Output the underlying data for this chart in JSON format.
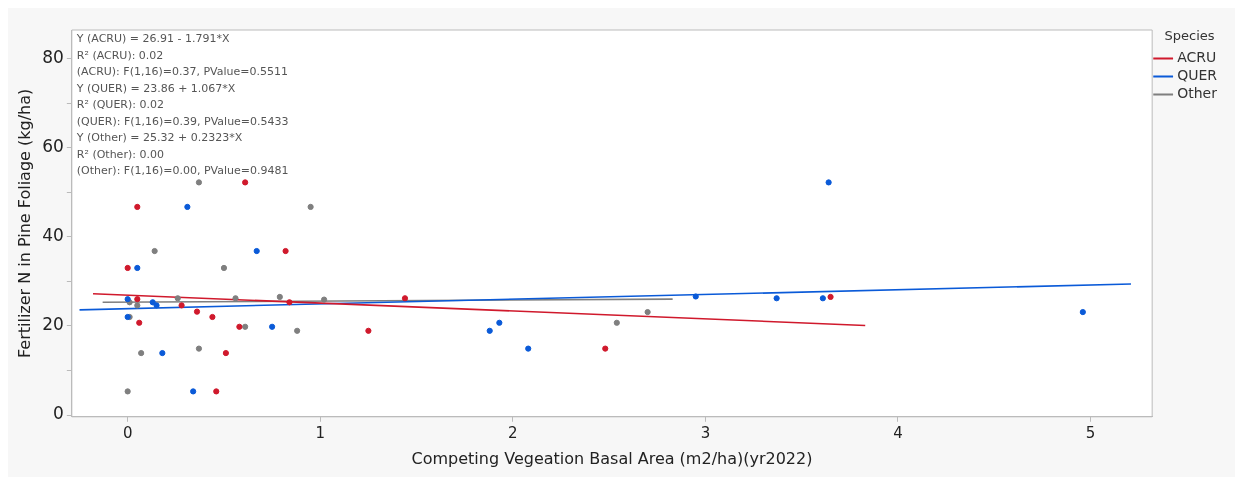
{
  "chart_data": {
    "type": "scatter",
    "xlabel": "Competing Vegeation Basal Area (m2/ha)(yr2022)",
    "ylabel": "Fertilizer N in Pine Foliage (kg/ha)",
    "legend_title": "Species",
    "legend": "right",
    "grid": false,
    "marker": "circle",
    "xlim": [
      -0.29,
      5.32
    ],
    "xticks": [
      0,
      1,
      2,
      3,
      4,
      5
    ],
    "ylim": [
      -0.4,
      86.4
    ],
    "yticks": [
      0,
      {
        "value": 10,
        "label": null
      },
      20,
      {
        "value": 30,
        "label": null
      },
      40,
      {
        "value": 50,
        "label": null
      },
      60,
      {
        "value": 70,
        "label": null
      },
      80
    ],
    "annotations": [
      "Y (ACRU) = 26.91 - 1.791*X",
      "R² (ACRU): 0.02",
      "(ACRU): F(1,16)=0.37, PValue=0.5511",
      "Y (QUER) = 23.86 + 1.067*X",
      "R² (QUER): 0.02",
      "(QUER): F(1,16)=0.39, PValue=0.5433",
      "Y (Other) = 25.32 + 0.2323*X",
      "R² (Other): 0.00",
      "(Other): F(1,16)=0.00, PValue=0.9481"
    ],
    "series": [
      {
        "type": "scatter",
        "color": "#d0192c",
        "x": [
          0.61,
          0.05,
          0.82,
          0,
          0.05,
          0.28,
          0.36,
          0.44,
          0.06,
          0.58,
          0.51,
          0.46,
          0.84,
          1.44,
          1.25,
          2.48,
          3.65
        ],
        "values": [
          52.2,
          46.7,
          36.8,
          33,
          26.0,
          24.6,
          23.2,
          22.0,
          20.7,
          19.8,
          13.9,
          5.3,
          25.3,
          26.2,
          18.9,
          14.9,
          26.5
        ]
      },
      {
        "type": "scatter",
        "color": "#0a5ad8",
        "x": [
          0.31,
          0.67,
          0.05,
          0,
          0.15,
          0,
          0.75,
          0.18,
          0.34,
          1.88,
          1.93,
          2.08,
          2.95,
          3.37,
          3.61,
          3.64,
          4.96,
          0.13
        ],
        "values": [
          46.7,
          36.8,
          33,
          26.0,
          24.6,
          22.0,
          19.8,
          13.9,
          5.3,
          18.9,
          20.7,
          14.9,
          26.6,
          26.2,
          26.2,
          52.2,
          23.1,
          25.3
        ]
      },
      {
        "type": "scatter",
        "color": "#7f7f7f",
        "x": [
          0.37,
          0.95,
          0.14,
          0.5,
          0.01,
          0.05,
          0.26,
          0.56,
          0.79,
          1.02,
          0.01,
          0.61,
          0.88,
          0.07,
          0.37,
          0,
          2.54,
          2.7
        ],
        "values": [
          52.2,
          46.7,
          36.8,
          33,
          25.3,
          24.6,
          26.2,
          26.2,
          26.5,
          25.9,
          22.0,
          19.8,
          18.9,
          13.9,
          14.9,
          5.3,
          20.7,
          23.1
        ]
      },
      {
        "type": "line",
        "name": "ACRU",
        "color": "#d0192c",
        "marker": "none",
        "x": [
          -0.18,
          3.83
        ],
        "values": [
          27.2,
          20.1
        ]
      },
      {
        "type": "line",
        "name": "QUER",
        "color": "#0a5ad8",
        "marker": "none",
        "x": [
          -0.25,
          5.21
        ],
        "values": [
          23.6,
          29.4
        ]
      },
      {
        "type": "line",
        "name": "Other",
        "color": "#7f7f7f",
        "marker": "none",
        "x": [
          -0.13,
          2.83
        ],
        "values": [
          25.3,
          26.0
        ]
      }
    ]
  }
}
